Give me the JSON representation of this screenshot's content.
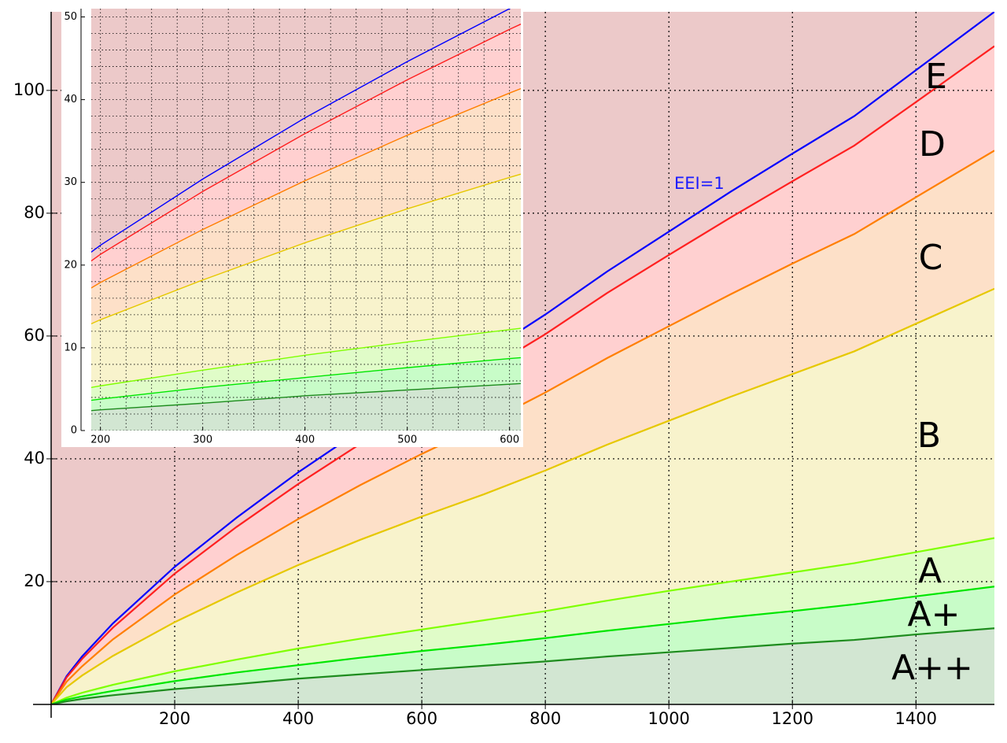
{
  "chart_data": {
    "type": "line",
    "x": [
      0,
      25,
      50,
      100,
      200,
      300,
      400,
      500,
      600,
      700,
      800,
      900,
      1000,
      1100,
      1200,
      1300,
      1400,
      1527
    ],
    "series": [
      {
        "color": "#0000ff",
        "fill": "#f2cccc",
        "values": [
          0,
          4.6,
          7.8,
          13.2,
          22.4,
          30.4,
          37.8,
          44.6,
          51,
          57,
          63.5,
          70.5,
          77,
          83.5,
          89.7,
          95.8,
          103.3,
          112.8
        ]
      },
      {
        "color": "#ff2020",
        "fill": "#ffd0d0",
        "values": [
          0,
          4.4,
          7.4,
          12.5,
          21.3,
          28.9,
          35.9,
          42.4,
          48.5,
          54.2,
          60.3,
          67.0,
          73.2,
          79.3,
          85.2,
          91.0,
          98.1,
          107.2
        ]
      },
      {
        "color": "#ff7f00",
        "fill": "#fde0c8",
        "values": [
          0,
          3.7,
          6.2,
          10.6,
          17.9,
          24.3,
          30.2,
          35.7,
          40.8,
          45.6,
          50.8,
          56.4,
          61.6,
          66.8,
          71.8,
          76.6,
          82.6,
          90.2
        ]
      },
      {
        "color": "#e6c800",
        "fill": "#f8f3cc",
        "values": [
          0,
          2.8,
          4.7,
          7.9,
          13.4,
          18.2,
          22.7,
          26.8,
          30.6,
          34.2,
          38.1,
          42.3,
          46.2,
          50.1,
          53.8,
          57.5,
          62.0,
          67.7
        ]
      },
      {
        "color": "#7fff00",
        "fill": "#e0fcc8",
        "values": [
          0,
          1.1,
          1.9,
          3.2,
          5.4,
          7.3,
          9.1,
          10.7,
          12.2,
          13.7,
          15.2,
          16.9,
          18.5,
          20.0,
          21.5,
          23.0,
          24.8,
          27.1
        ]
      },
      {
        "color": "#00e600",
        "fill": "#c8fcc8",
        "values": [
          0,
          0.8,
          1.3,
          2.2,
          3.8,
          5.2,
          6.4,
          7.6,
          8.7,
          9.7,
          10.8,
          12.0,
          13.1,
          14.2,
          15.2,
          16.3,
          17.6,
          19.2
        ]
      },
      {
        "color": "#1e8c1e",
        "fill": "#d2e6d2",
        "values": [
          0,
          0.5,
          0.9,
          1.5,
          2.5,
          3.3,
          4.2,
          4.9,
          5.6,
          6.3,
          7.0,
          7.8,
          8.5,
          9.2,
          9.9,
          10.5,
          11.4,
          12.4
        ]
      }
    ],
    "background": "#ecc9c9",
    "xlim": [
      0,
      1527
    ],
    "ylim": [
      0,
      112.8
    ],
    "xticks": [
      200,
      400,
      600,
      800,
      1000,
      1200,
      1400
    ],
    "yticks": [
      20,
      40,
      60,
      80,
      100
    ],
    "grid": true,
    "annotations": [
      "EEI=1",
      "E",
      "D",
      "C",
      "B",
      "A",
      "A+",
      "A++"
    ],
    "inset": {
      "xlim": [
        191,
        611
      ],
      "ylim": [
        0,
        51
      ],
      "xticks": [
        200,
        300,
        400,
        500,
        600
      ],
      "yticks": [
        0,
        10,
        20,
        30,
        40,
        50
      ],
      "minor_xticks": [
        200,
        225,
        250,
        275,
        300,
        325,
        350,
        375,
        400,
        425,
        450,
        475,
        500,
        525,
        550,
        575,
        600
      ],
      "minor_yticks": [
        0,
        2,
        4,
        6,
        8,
        10,
        12,
        14,
        16,
        18,
        20,
        22,
        24,
        26,
        28,
        30,
        32,
        34,
        36,
        38,
        40,
        42,
        44,
        46,
        48,
        50
      ],
      "grid": true
    }
  }
}
